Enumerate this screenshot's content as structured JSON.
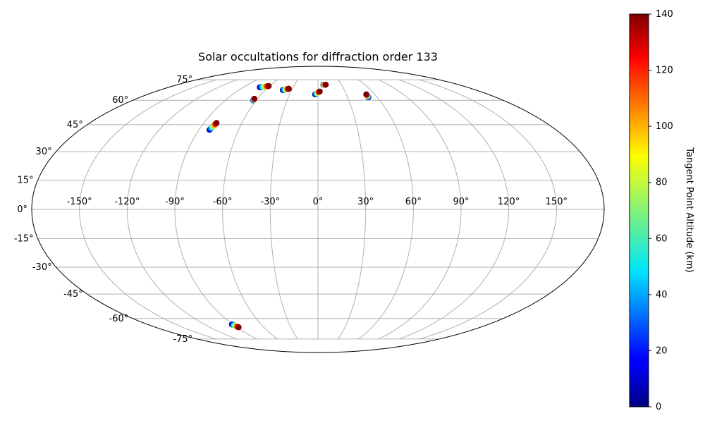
{
  "chart_data": {
    "type": "scatter",
    "projection": "mollweide",
    "title": "Solar occultations for diffraction order 133",
    "xlabel": "",
    "ylabel": "",
    "grid": true,
    "lon_ticks": [
      "-150°",
      "-120°",
      "-90°",
      "-60°",
      "-30°",
      "0°",
      "30°",
      "60°",
      "90°",
      "120°",
      "150°"
    ],
    "lat_ticks": [
      "75°",
      "60°",
      "45°",
      "30°",
      "15°",
      "0°",
      "-15°",
      "-30°",
      "-45°",
      "-60°",
      "-75°"
    ],
    "colorbar": {
      "label": "Tangent Point Altitude (km)",
      "range": [
        0,
        140
      ],
      "ticks": [
        "0",
        "20",
        "40",
        "60",
        "80",
        "100",
        "120",
        "140"
      ],
      "colormap": "jet"
    },
    "tracks": [
      {
        "lon_start": -70,
        "lat_start": 69,
        "lon_end": -61,
        "lat_end": 70
      },
      {
        "lon_start": -63,
        "lat_start": 60,
        "lon_end": -63,
        "lat_end": 61
      },
      {
        "lon_start": -82,
        "lat_start": 42,
        "lon_end": -80,
        "lat_end": 46
      },
      {
        "lon_start": -40,
        "lat_start": 67,
        "lon_end": -34,
        "lat_end": 68
      },
      {
        "lon_start": -3,
        "lat_start": 64,
        "lon_end": 2,
        "lat_end": 66
      },
      {
        "lon_start": 7,
        "lat_start": 71,
        "lon_end": 10,
        "lat_end": 71
      },
      {
        "lon_start": 51,
        "lat_start": 62,
        "lon_end": 51,
        "lat_end": 64
      },
      {
        "lon_start": -91,
        "lat_start": -64,
        "lon_end": -88,
        "lat_end": -66
      }
    ]
  }
}
